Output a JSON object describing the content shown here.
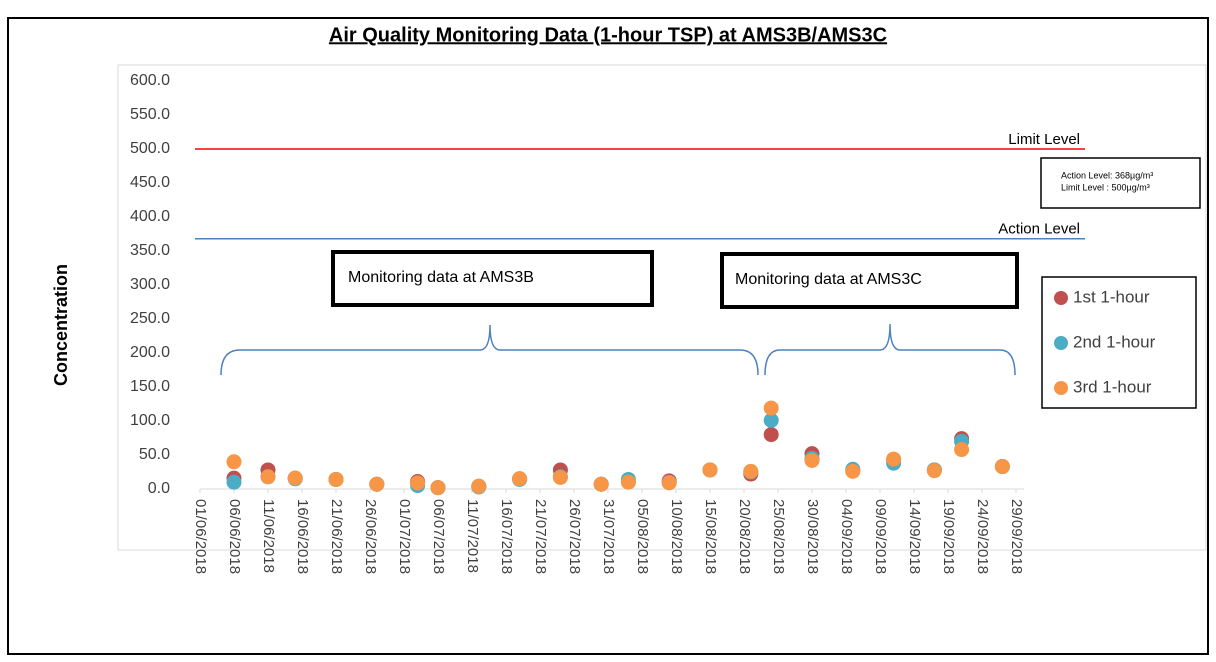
{
  "chart_data": {
    "type": "scatter",
    "title": "Air Quality Monitoring Data (1-hour TSP) at AMS3B/AMS3C",
    "y_label": "Concentration",
    "x": [
      "06/06/2018",
      "11/06/2018",
      "15/06/2018",
      "21/06/2018",
      "27/06/2018",
      "03/07/2018",
      "06/07/2018",
      "12/07/2018",
      "18/07/2018",
      "24/07/2018",
      "30/07/2018",
      "03/08/2018",
      "09/08/2018",
      "15/08/2018",
      "21/08/2018",
      "24/08/2018",
      "30/08/2018",
      "05/09/2018",
      "11/09/2018",
      "17/09/2018",
      "21/09/2018",
      "27/09/2018"
    ],
    "series": [
      {
        "name": "1st 1-hour",
        "color": "#c0504d",
        "values": [
          16,
          28,
          16,
          14,
          7,
          11,
          2,
          4,
          15,
          28,
          7,
          11,
          12,
          28,
          22,
          80,
          52,
          27,
          43,
          28,
          74,
          33
        ]
      },
      {
        "name": "2nd 1-hour",
        "color": "#4bacc6",
        "values": [
          10,
          18,
          15,
          14,
          7,
          5,
          2,
          3,
          14,
          18,
          7,
          14,
          10,
          28,
          25,
          101,
          45,
          29,
          38,
          28,
          70,
          33
        ]
      },
      {
        "name": "3rd 1-hour",
        "color": "#f79646",
        "values": [
          40,
          18,
          16,
          14,
          7,
          9,
          2,
          4,
          15,
          17,
          7,
          10,
          9,
          28,
          26,
          119,
          42,
          26,
          44,
          27,
          58,
          33
        ]
      }
    ],
    "xlim": [
      "01/06/2018",
      "29/09/2018"
    ],
    "xticks": [
      "01/06/2018",
      "06/06/2018",
      "11/06/2018",
      "16/06/2018",
      "21/06/2018",
      "26/06/2018",
      "01/07/2018",
      "06/07/2018",
      "11/07/2018",
      "16/07/2018",
      "21/07/2018",
      "26/07/2018",
      "31/07/2018",
      "05/08/2018",
      "10/08/2018",
      "15/08/2018",
      "20/08/2018",
      "25/08/2018",
      "30/08/2018",
      "04/09/2018",
      "09/09/2018",
      "14/09/2018",
      "19/09/2018",
      "24/09/2018",
      "29/09/2018"
    ],
    "ylim": [
      0,
      600
    ],
    "yticks": [
      {
        "value": 0,
        "label": "0.0"
      },
      {
        "value": 50,
        "label": "50.0"
      },
      {
        "value": 100,
        "label": "100.0"
      },
      {
        "value": 150,
        "label": "150.0"
      },
      {
        "value": 200,
        "label": "200.0"
      },
      {
        "value": 250,
        "label": "250.0"
      },
      {
        "value": 300,
        "label": "300.0"
      },
      {
        "value": 350,
        "label": "350.0"
      },
      {
        "value": 400,
        "label": "400.0"
      },
      {
        "value": 450,
        "label": "450.0"
      },
      {
        "value": 500,
        "label": "500.0"
      },
      {
        "value": 550,
        "label": "550.0"
      },
      {
        "value": 600,
        "label": "600.0"
      }
    ],
    "reference_lines": [
      {
        "label": "Limit Level",
        "value": 500,
        "color": "#ff0000"
      },
      {
        "label": "Action Level",
        "value": 368,
        "color": "#4f81bd"
      }
    ],
    "info_box": [
      "Action Level: 368µg/m³",
      "Limit Level : 500µg/m³"
    ],
    "annotations": [
      "Monitoring data at AMS3B",
      "Monitoring data at AMS3C"
    ],
    "legend": "right"
  }
}
